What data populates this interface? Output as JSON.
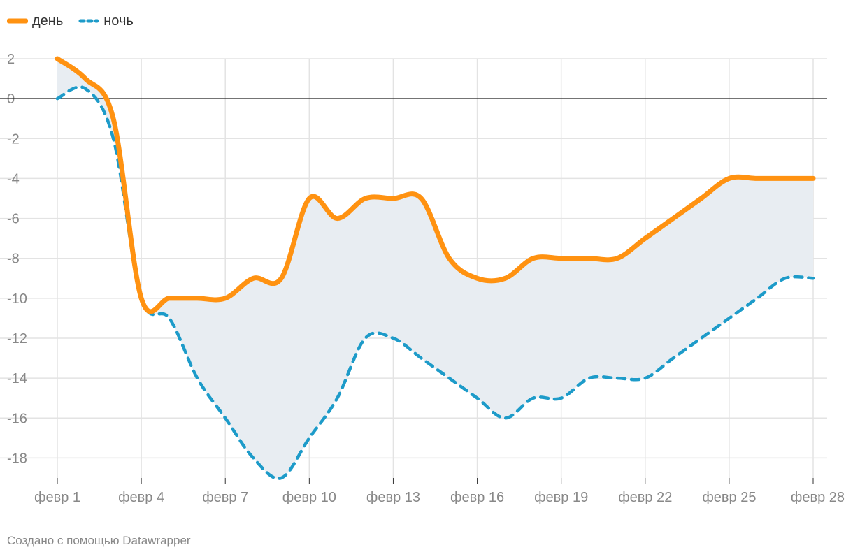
{
  "legend": [
    {
      "label": "день",
      "color": "#ff9211",
      "style": "solid"
    },
    {
      "label": "ночь",
      "color": "#1d9bc9",
      "style": "dashed"
    }
  ],
  "footer": "Создано с помощью Datawrapper",
  "chart_data": {
    "type": "line",
    "title": "",
    "xlabel": "",
    "ylabel": "",
    "x": [
      1,
      2,
      3,
      4,
      5,
      6,
      7,
      8,
      9,
      10,
      11,
      12,
      13,
      14,
      15,
      16,
      17,
      18,
      19,
      20,
      21,
      22,
      23,
      24,
      25,
      26,
      27,
      28
    ],
    "x_tick_values": [
      1,
      4,
      7,
      10,
      13,
      16,
      19,
      22,
      25,
      28
    ],
    "x_tick_labels": [
      "февр 1",
      "февр 4",
      "февр 7",
      "февр 10",
      "февр 13",
      "февр 16",
      "февр 19",
      "февр 22",
      "февр 25",
      "февр 28"
    ],
    "y_ticks": [
      2,
      0,
      -2,
      -4,
      -6,
      -8,
      -10,
      -12,
      -14,
      -16,
      -18
    ],
    "y_tick_labels": [
      "2",
      "0",
      "-2",
      "-4",
      "-6",
      "-8",
      "-10",
      "-12",
      "-14",
      "-16",
      "-18"
    ],
    "ylim": [
      -19,
      2
    ],
    "grid": true,
    "zero_line": true,
    "band_fill": "#e8edf2",
    "series": [
      {
        "name": "день",
        "color": "#ff9211",
        "style": "solid",
        "values": [
          2,
          1,
          -1,
          -10,
          -10,
          -10,
          -10,
          -9,
          -9,
          -5,
          -6,
          -5,
          -5,
          -5,
          -8,
          -9,
          -9,
          -8,
          -8,
          -8,
          -8,
          -7,
          -6,
          -5,
          -4,
          -4,
          -4,
          -4
        ]
      },
      {
        "name": "ночь",
        "color": "#1d9bc9",
        "style": "dashed",
        "values": [
          0,
          0.5,
          -2,
          -10,
          -11,
          -14,
          -16,
          -18,
          -19,
          -17,
          -15,
          -12,
          -12,
          -13,
          -14,
          -15,
          -16,
          -15,
          -15,
          -14,
          -14,
          -14,
          -13,
          -12,
          -11,
          -10,
          -9,
          -9
        ]
      }
    ]
  }
}
